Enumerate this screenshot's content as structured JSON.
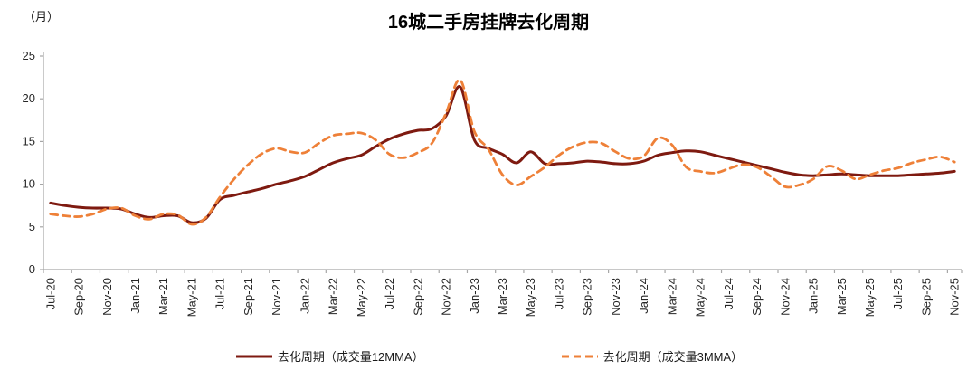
{
  "chart": {
    "title": "16城二手房挂牌去化周期",
    "unit_label": "（月）"
  },
  "chart_data": {
    "type": "line",
    "title": "16城二手房挂牌去化周期",
    "ylabel": "（月）",
    "ylim": [
      0,
      25
    ],
    "yticks": [
      0,
      5,
      10,
      15,
      20,
      25
    ],
    "x_label_interval": 2,
    "grid": false,
    "legend_position": "bottom",
    "axis_color": "#A6A6A6",
    "text_color": "#262626",
    "categories": [
      "Jul-20",
      "Aug-20",
      "Sep-20",
      "Oct-20",
      "Nov-20",
      "Dec-20",
      "Jan-21",
      "Feb-21",
      "Mar-21",
      "Apr-21",
      "May-21",
      "Jun-21",
      "Jul-21",
      "Aug-21",
      "Sep-21",
      "Oct-21",
      "Nov-21",
      "Dec-21",
      "Jan-22",
      "Feb-22",
      "Mar-22",
      "Apr-22",
      "May-22",
      "Jun-22",
      "Jul-22",
      "Aug-22",
      "Sep-22",
      "Oct-22",
      "Nov-22",
      "Dec-22",
      "Jan-23",
      "Feb-23",
      "Mar-23",
      "Apr-23",
      "May-23",
      "Jun-23",
      "Jul-23",
      "Aug-23",
      "Sep-23",
      "Oct-23",
      "Nov-23",
      "Dec-23",
      "Jan-24",
      "Feb-24",
      "Mar-24",
      "Apr-24",
      "May-24",
      "Jun-24",
      "Jul-24",
      "Aug-24",
      "Sep-24",
      "Oct-24",
      "Nov-24",
      "Dec-24",
      "Jan-25",
      "Feb-25",
      "Mar-25",
      "Apr-25",
      "May-25",
      "Jun-25",
      "Jul-25",
      "Aug-25",
      "Sep-25",
      "Oct-25",
      "Nov-25"
    ],
    "series": [
      {
        "key": "12mma",
        "name": "去化周期（成交量12MMA）",
        "style": "solid",
        "color": "#7E1A10",
        "values": [
          7.8,
          7.5,
          7.3,
          7.2,
          7.2,
          7.1,
          6.5,
          6.1,
          6.3,
          6.3,
          5.5,
          6.0,
          8.2,
          8.7,
          9.1,
          9.5,
          10.0,
          10.4,
          10.9,
          11.7,
          12.5,
          13.0,
          13.4,
          14.4,
          15.3,
          15.9,
          16.3,
          16.5,
          18.0,
          21.4,
          15.2,
          14.2,
          13.5,
          12.5,
          13.8,
          12.4,
          12.4,
          12.5,
          12.7,
          12.6,
          12.4,
          12.4,
          12.7,
          13.4,
          13.7,
          13.9,
          13.8,
          13.4,
          13.0,
          12.6,
          12.2,
          11.8,
          11.4,
          11.1,
          11.0,
          11.1,
          11.2,
          11.1,
          11.0,
          11.0,
          11.0,
          11.1,
          11.2,
          11.3,
          11.5
        ]
      },
      {
        "key": "3mma",
        "name": "去化周期（成交量3MMA）",
        "style": "dashed",
        "color": "#EE8038",
        "values": [
          6.5,
          6.3,
          6.2,
          6.5,
          7.1,
          7.2,
          6.3,
          5.9,
          6.5,
          6.4,
          5.3,
          6.1,
          8.5,
          10.6,
          12.3,
          13.6,
          14.2,
          13.8,
          13.7,
          14.8,
          15.7,
          15.9,
          16.0,
          15.2,
          13.5,
          13.1,
          13.7,
          14.8,
          18.3,
          22.2,
          16.2,
          14.1,
          11.1,
          9.9,
          10.9,
          12.0,
          13.4,
          14.4,
          14.9,
          14.8,
          13.8,
          13.0,
          13.3,
          15.4,
          14.6,
          12.0,
          11.5,
          11.3,
          11.8,
          12.3,
          12.0,
          10.9,
          9.7,
          9.9,
          10.6,
          12.1,
          11.6,
          10.6,
          11.1,
          11.6,
          11.9,
          12.5,
          12.9,
          13.2,
          12.6
        ]
      }
    ]
  }
}
